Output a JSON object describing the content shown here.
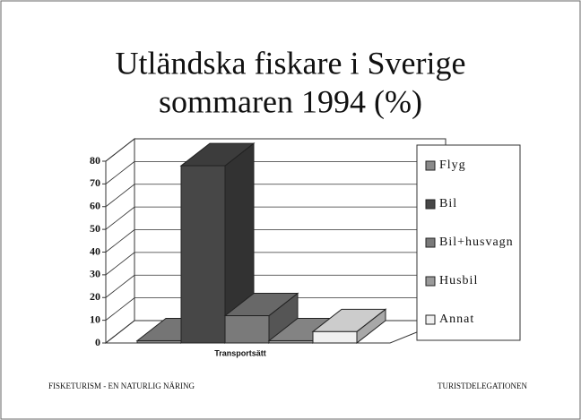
{
  "chart_data": {
    "type": "bar3d",
    "title": [
      "Utländska fiskare i Sverige",
      "sommaren 1994 (%)"
    ],
    "xlabel": "Transportsätt",
    "series": [
      {
        "name": "Flyg",
        "color": "#8a8a8a",
        "values": [
          1
        ]
      },
      {
        "name": "Bil",
        "color": "#474747",
        "values": [
          78
        ]
      },
      {
        "name": "Bil+husvagn",
        "color": "#7a7a7a",
        "values": [
          12
        ]
      },
      {
        "name": "Husbil",
        "color": "#9a9a9a",
        "values": [
          1
        ]
      },
      {
        "name": "Annat",
        "color": "#f0f0f0",
        "values": [
          5
        ]
      }
    ],
    "ylim": [
      0,
      80
    ],
    "yticks": [
      0,
      10,
      20,
      30,
      40,
      50,
      60,
      70,
      80
    ],
    "grid": true,
    "legend": "right"
  },
  "footer": {
    "left": "FISKETURISM - EN NATURLIG NÄRING",
    "right": "TURISTDELEGATIONEN"
  }
}
